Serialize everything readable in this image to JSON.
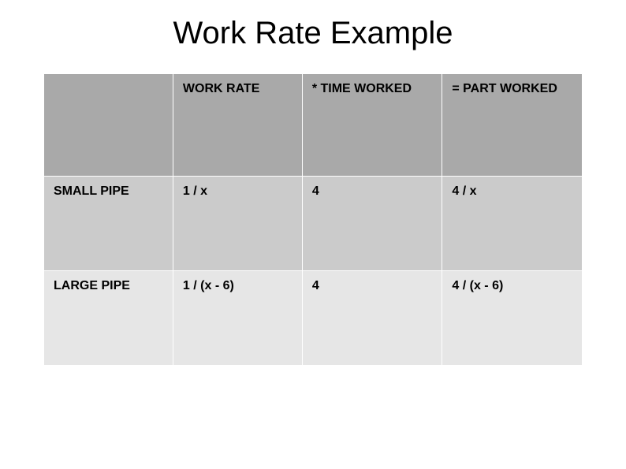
{
  "title": "Work Rate Example",
  "table": {
    "columns": [
      "",
      "WORK RATE",
      "* TIME WORKED",
      "= PART WORKED"
    ],
    "rows": [
      [
        "SMALL PIPE",
        "1 / x",
        "4",
        "4 / x"
      ],
      [
        "LARGE PIPE",
        "1 / (x - 6)",
        "4",
        "4 / (x - 6)"
      ]
    ],
    "header_bg": "#a9a9a9",
    "row_bgs": [
      "#cbcbcb",
      "#e6e6e6"
    ],
    "border_color": "#ffffff",
    "text_color": "#000000",
    "font_size": 16,
    "font_weight": "bold",
    "col_widths": [
      "24%",
      "24%",
      "26%",
      "26%"
    ]
  },
  "title_style": {
    "font_size": 40,
    "color": "#000000",
    "align": "center"
  },
  "background": "#ffffff"
}
